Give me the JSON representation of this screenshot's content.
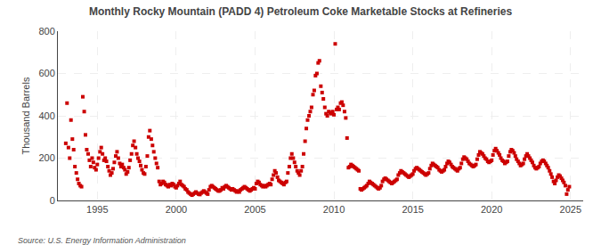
{
  "chart_data": {
    "type": "scatter",
    "title": "Monthly Rocky Mountain (PADD 4) Petroleum Coke Marketable Stocks at Refineries",
    "y_label": "Thousand Barrels",
    "annotations": [
      "Source: U.S. Energy Information Administration"
    ],
    "color": "#cc0000",
    "marker": "square",
    "grid": true,
    "xlim": [
      1992.5,
      2025.8
    ],
    "xticks": [
      1995,
      2000,
      2005,
      2010,
      2015,
      2020,
      2025
    ],
    "ylim": [
      0,
      800
    ],
    "yticks": [
      0,
      200,
      400,
      600,
      800
    ],
    "x": [
      1993.0,
      1993.08,
      1993.17,
      1993.25,
      1993.33,
      1993.42,
      1993.5,
      1993.58,
      1993.67,
      1993.75,
      1993.83,
      1993.92,
      1994.0,
      1994.08,
      1994.17,
      1994.25,
      1994.33,
      1994.42,
      1994.5,
      1994.58,
      1994.67,
      1994.75,
      1994.83,
      1994.92,
      1995.0,
      1995.08,
      1995.17,
      1995.25,
      1995.33,
      1995.42,
      1995.5,
      1995.58,
      1995.67,
      1995.75,
      1995.83,
      1995.92,
      1996.0,
      1996.08,
      1996.17,
      1996.25,
      1996.33,
      1996.42,
      1996.5,
      1996.58,
      1996.67,
      1996.75,
      1996.83,
      1996.92,
      1997.0,
      1997.08,
      1997.17,
      1997.25,
      1997.33,
      1997.42,
      1997.5,
      1997.58,
      1997.67,
      1997.75,
      1997.83,
      1997.92,
      1998.0,
      1998.08,
      1998.17,
      1998.25,
      1998.33,
      1998.42,
      1998.5,
      1998.58,
      1998.67,
      1998.75,
      1998.83,
      1998.92,
      1999.0,
      1999.08,
      1999.17,
      1999.25,
      1999.33,
      1999.42,
      1999.5,
      1999.58,
      1999.67,
      1999.75,
      1999.83,
      1999.92,
      2000.0,
      2000.08,
      2000.17,
      2000.25,
      2000.33,
      2000.42,
      2000.5,
      2000.58,
      2000.67,
      2000.75,
      2000.83,
      2000.92,
      2001.0,
      2001.08,
      2001.17,
      2001.25,
      2001.33,
      2001.42,
      2001.5,
      2001.58,
      2001.67,
      2001.75,
      2001.83,
      2001.92,
      2002.0,
      2002.08,
      2002.17,
      2002.25,
      2002.33,
      2002.42,
      2002.5,
      2002.58,
      2002.67,
      2002.75,
      2002.83,
      2002.92,
      2003.0,
      2003.08,
      2003.17,
      2003.25,
      2003.33,
      2003.42,
      2003.5,
      2003.58,
      2003.67,
      2003.75,
      2003.83,
      2003.92,
      2004.0,
      2004.08,
      2004.17,
      2004.25,
      2004.33,
      2004.42,
      2004.5,
      2004.58,
      2004.67,
      2004.75,
      2004.83,
      2004.92,
      2005.0,
      2005.08,
      2005.17,
      2005.25,
      2005.33,
      2005.42,
      2005.5,
      2005.58,
      2005.67,
      2005.75,
      2005.83,
      2005.92,
      2006.0,
      2006.08,
      2006.17,
      2006.25,
      2006.33,
      2006.42,
      2006.5,
      2006.58,
      2006.67,
      2006.75,
      2006.83,
      2006.92,
      2007.0,
      2007.08,
      2007.17,
      2007.25,
      2007.33,
      2007.42,
      2007.5,
      2007.58,
      2007.67,
      2007.75,
      2007.83,
      2007.92,
      2008.0,
      2008.08,
      2008.17,
      2008.25,
      2008.33,
      2008.42,
      2008.5,
      2008.58,
      2008.67,
      2008.75,
      2008.83,
      2008.92,
      2009.0,
      2009.08,
      2009.17,
      2009.25,
      2009.33,
      2009.42,
      2009.5,
      2009.58,
      2009.67,
      2009.75,
      2009.83,
      2009.92,
      2010.0,
      2010.08,
      2010.17,
      2010.25,
      2010.33,
      2010.42,
      2010.5,
      2010.58,
      2010.67,
      2010.75,
      2010.83,
      2010.92,
      2011.0,
      2011.08,
      2011.17,
      2011.25,
      2011.33,
      2011.42,
      2011.5,
      2011.58,
      2011.67,
      2011.75,
      2011.83,
      2011.92,
      2012.0,
      2012.08,
      2012.17,
      2012.25,
      2012.33,
      2012.42,
      2012.5,
      2012.58,
      2012.67,
      2012.75,
      2012.83,
      2012.92,
      2013.0,
      2013.08,
      2013.17,
      2013.25,
      2013.33,
      2013.42,
      2013.5,
      2013.58,
      2013.67,
      2013.75,
      2013.83,
      2013.92,
      2014.0,
      2014.08,
      2014.17,
      2014.25,
      2014.33,
      2014.42,
      2014.5,
      2014.58,
      2014.67,
      2014.75,
      2014.83,
      2014.92,
      2015.0,
      2015.08,
      2015.17,
      2015.25,
      2015.33,
      2015.42,
      2015.5,
      2015.58,
      2015.67,
      2015.75,
      2015.83,
      2015.92,
      2016.0,
      2016.08,
      2016.17,
      2016.25,
      2016.33,
      2016.42,
      2016.5,
      2016.58,
      2016.67,
      2016.75,
      2016.83,
      2016.92,
      2017.0,
      2017.08,
      2017.17,
      2017.25,
      2017.33,
      2017.42,
      2017.5,
      2017.58,
      2017.67,
      2017.75,
      2017.83,
      2017.92,
      2018.0,
      2018.08,
      2018.17,
      2018.25,
      2018.33,
      2018.42,
      2018.5,
      2018.58,
      2018.67,
      2018.75,
      2018.83,
      2018.92,
      2019.0,
      2019.08,
      2019.17,
      2019.25,
      2019.33,
      2019.42,
      2019.5,
      2019.58,
      2019.67,
      2019.75,
      2019.83,
      2019.92,
      2020.0,
      2020.08,
      2020.17,
      2020.25,
      2020.33,
      2020.42,
      2020.5,
      2020.58,
      2020.67,
      2020.75,
      2020.83,
      2020.92,
      2021.0,
      2021.08,
      2021.17,
      2021.25,
      2021.33,
      2021.42,
      2021.5,
      2021.58,
      2021.67,
      2021.75,
      2021.83,
      2021.92,
      2022.0,
      2022.08,
      2022.17,
      2022.25,
      2022.33,
      2022.42,
      2022.5,
      2022.58,
      2022.67,
      2022.75,
      2022.83,
      2022.92,
      2023.0,
      2023.08,
      2023.17,
      2023.25,
      2023.33,
      2023.42,
      2023.5,
      2023.58,
      2023.67,
      2023.75,
      2023.83,
      2023.92,
      2024.0,
      2024.08,
      2024.17,
      2024.25,
      2024.33,
      2024.42,
      2024.5,
      2024.58,
      2024.67,
      2024.75,
      2024.83,
      2024.92
    ],
    "values": [
      270,
      460,
      250,
      200,
      380,
      290,
      240,
      160,
      130,
      100,
      80,
      70,
      65,
      490,
      420,
      310,
      240,
      220,
      190,
      160,
      200,
      180,
      155,
      145,
      170,
      200,
      230,
      250,
      220,
      190,
      200,
      185,
      160,
      140,
      120,
      130,
      150,
      180,
      210,
      230,
      200,
      175,
      160,
      170,
      155,
      145,
      125,
      135,
      155,
      190,
      220,
      260,
      280,
      250,
      220,
      200,
      185,
      165,
      145,
      130,
      125,
      160,
      210,
      300,
      330,
      290,
      260,
      230,
      200,
      175,
      155,
      90,
      75,
      80,
      90,
      85,
      75,
      70,
      65,
      75,
      70,
      80,
      75,
      65,
      60,
      70,
      80,
      90,
      75,
      70,
      65,
      55,
      50,
      40,
      35,
      30,
      25,
      30,
      35,
      40,
      35,
      30,
      28,
      35,
      40,
      45,
      40,
      35,
      30,
      50,
      65,
      70,
      65,
      60,
      55,
      50,
      45,
      45,
      50,
      60,
      55,
      65,
      70,
      65,
      60,
      55,
      50,
      55,
      50,
      45,
      40,
      45,
      40,
      50,
      55,
      60,
      65,
      60,
      55,
      50,
      45,
      50,
      55,
      60,
      55,
      80,
      90,
      85,
      75,
      70,
      65,
      70,
      65,
      70,
      75,
      80,
      75,
      100,
      120,
      140,
      130,
      110,
      95,
      90,
      85,
      80,
      75,
      85,
      90,
      130,
      160,
      200,
      220,
      200,
      180,
      160,
      140,
      130,
      120,
      140,
      160,
      220,
      280,
      340,
      380,
      400,
      420,
      440,
      500,
      520,
      590,
      600,
      650,
      660,
      540,
      510,
      480,
      440,
      410,
      400,
      420,
      415,
      410,
      420,
      405,
      740,
      430,
      440,
      430,
      460,
      465,
      450,
      420,
      390,
      295,
      155,
      160,
      170,
      165,
      160,
      155,
      150,
      145,
      140,
      55,
      50,
      55,
      60,
      65,
      70,
      80,
      90,
      85,
      80,
      75,
      70,
      65,
      60,
      55,
      60,
      70,
      90,
      100,
      105,
      100,
      95,
      90,
      85,
      80,
      85,
      90,
      95,
      100,
      120,
      130,
      140,
      135,
      130,
      125,
      120,
      115,
      110,
      115,
      120,
      125,
      140,
      150,
      155,
      150,
      145,
      140,
      135,
      130,
      125,
      120,
      125,
      130,
      150,
      165,
      175,
      170,
      165,
      160,
      155,
      145,
      140,
      135,
      140,
      145,
      160,
      175,
      185,
      180,
      170,
      160,
      155,
      150,
      145,
      140,
      150,
      155,
      175,
      195,
      205,
      200,
      195,
      185,
      175,
      170,
      165,
      160,
      165,
      170,
      195,
      215,
      230,
      225,
      220,
      210,
      200,
      195,
      185,
      180,
      185,
      190,
      215,
      235,
      245,
      235,
      225,
      215,
      200,
      190,
      185,
      175,
      180,
      185,
      210,
      230,
      240,
      235,
      225,
      210,
      195,
      185,
      175,
      165,
      170,
      175,
      195,
      210,
      220,
      210,
      200,
      190,
      180,
      165,
      155,
      150,
      155,
      160,
      175,
      185,
      190,
      185,
      175,
      165,
      155,
      140,
      125,
      110,
      90,
      80,
      95,
      110,
      120,
      115,
      105,
      95,
      85,
      70,
      30,
      50,
      65
    ]
  }
}
